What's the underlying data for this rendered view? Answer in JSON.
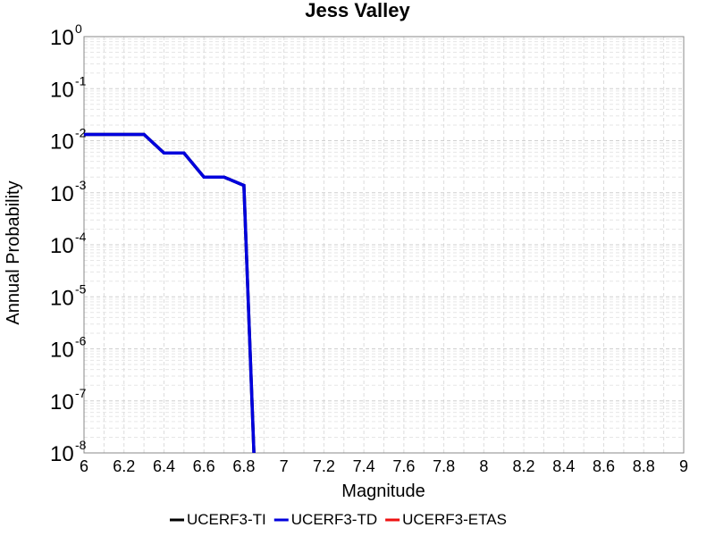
{
  "chart_data": {
    "type": "line",
    "title": "Jess Valley",
    "xlabel": "Magnitude",
    "ylabel": "Annual Probability",
    "xlim": [
      6,
      9
    ],
    "ylim": [
      1e-08,
      1
    ],
    "yscale": "log",
    "grid": true,
    "legend_position": "bottom",
    "x_ticks": [
      "6",
      "6.2",
      "6.4",
      "6.6",
      "6.8",
      "7",
      "7.2",
      "7.4",
      "7.6",
      "7.8",
      "8",
      "8.2",
      "8.4",
      "8.6",
      "8.8",
      "9"
    ],
    "y_ticks": [
      {
        "base": "10",
        "exp": "-8"
      },
      {
        "base": "10",
        "exp": "-7"
      },
      {
        "base": "10",
        "exp": "-6"
      },
      {
        "base": "10",
        "exp": "-5"
      },
      {
        "base": "10",
        "exp": "-4"
      },
      {
        "base": "10",
        "exp": "-3"
      },
      {
        "base": "10",
        "exp": "-2"
      },
      {
        "base": "10",
        "exp": "-1"
      },
      {
        "base": "10",
        "exp": "0"
      }
    ],
    "series": [
      {
        "name": "UCERF3-TI",
        "color": "#000000",
        "x": [
          6.0,
          6.3,
          6.4,
          6.5,
          6.6,
          6.7,
          6.8,
          6.85
        ],
        "y": [
          0.0132,
          0.0132,
          0.0058,
          0.0058,
          0.002,
          0.002,
          0.00138,
          1e-08
        ]
      },
      {
        "name": "UCERF3-TD",
        "color": "#0000dd",
        "x": [
          6.0,
          6.3,
          6.4,
          6.5,
          6.6,
          6.7,
          6.8,
          6.85
        ],
        "y": [
          0.0132,
          0.0132,
          0.0058,
          0.0058,
          0.002,
          0.002,
          0.00138,
          1e-08
        ]
      },
      {
        "name": "UCERF3-ETAS",
        "color": "#ee1111",
        "x": [],
        "y": []
      }
    ]
  }
}
